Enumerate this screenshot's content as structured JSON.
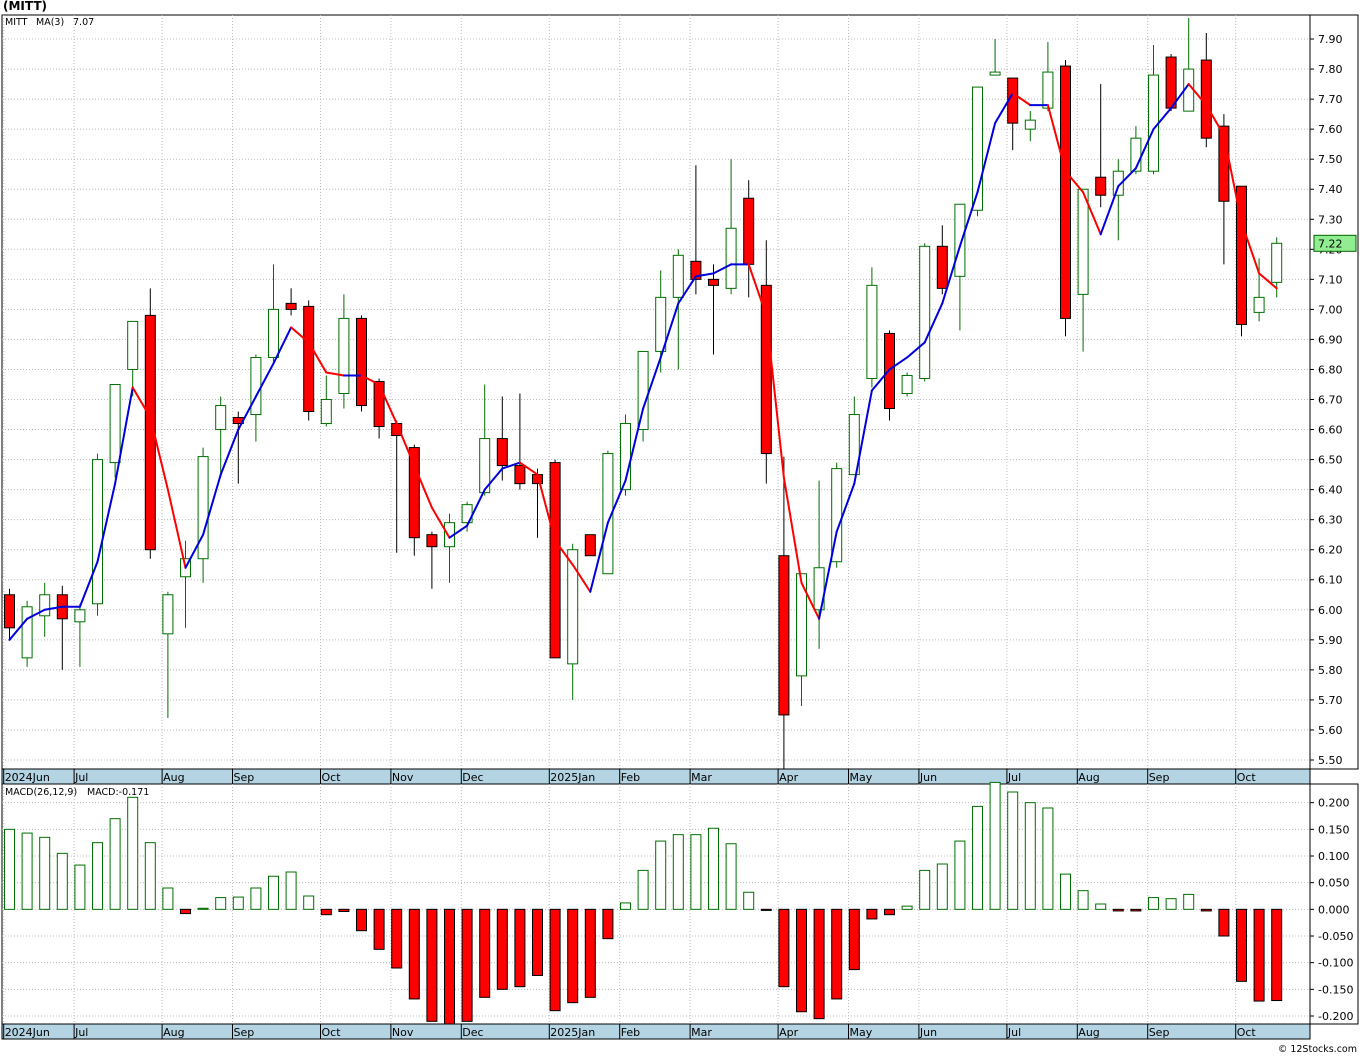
{
  "title": "(MITT)",
  "watermark": "© 12Stocks.com",
  "colors": {
    "up": "#007000",
    "down": "#ff0000",
    "ma_up": "#0000dd",
    "ma_down": "#ff0000",
    "axis_band": "#b4d4e4",
    "grid": "#bbbbbb",
    "last_price_box": "#90ee90"
  },
  "chart_data": [
    {
      "type": "candlestick",
      "legend": {
        "symbol": "MITT",
        "ma_label": "MA(3)",
        "ma_value": "7.07"
      },
      "last_price_label": "7.22",
      "y_ticks": [
        "5.50",
        "5.60",
        "5.70",
        "5.80",
        "5.90",
        "6.00",
        "6.10",
        "6.20",
        "6.30",
        "6.40",
        "6.50",
        "6.60",
        "6.70",
        "6.80",
        "6.90",
        "7.00",
        "7.10",
        "7.20",
        "7.30",
        "7.40",
        "7.50",
        "7.60",
        "7.70",
        "7.80",
        "7.90"
      ],
      "ylim": [
        5.47,
        7.98
      ],
      "grid": true,
      "x_labels": [
        {
          "label": "2024Jun",
          "bar": 0
        },
        {
          "label": "Jul",
          "bar": 4
        },
        {
          "label": "Aug",
          "bar": 9
        },
        {
          "label": "Sep",
          "bar": 13
        },
        {
          "label": "Oct",
          "bar": 18
        },
        {
          "label": "Nov",
          "bar": 22
        },
        {
          "label": "Dec",
          "bar": 26
        },
        {
          "label": "2025Jan",
          "bar": 31
        },
        {
          "label": "Feb",
          "bar": 35
        },
        {
          "label": "Mar",
          "bar": 39
        },
        {
          "label": "Apr",
          "bar": 44
        },
        {
          "label": "May",
          "bar": 48
        },
        {
          "label": "Jun",
          "bar": 52
        },
        {
          "label": "Jul",
          "bar": 57
        },
        {
          "label": "Aug",
          "bar": 61
        },
        {
          "label": "Sep",
          "bar": 65
        },
        {
          "label": "Oct",
          "bar": 70
        }
      ],
      "candles": [
        {
          "o": 6.05,
          "h": 6.07,
          "l": 5.9,
          "c": 5.94
        },
        {
          "o": 5.84,
          "h": 6.03,
          "l": 5.81,
          "c": 6.01
        },
        {
          "o": 5.98,
          "h": 6.09,
          "l": 5.91,
          "c": 6.05
        },
        {
          "o": 6.05,
          "h": 6.08,
          "l": 5.8,
          "c": 5.97
        },
        {
          "o": 5.96,
          "h": 6.02,
          "l": 5.81,
          "c": 6.0
        },
        {
          "o": 6.02,
          "h": 6.52,
          "l": 5.98,
          "c": 6.5
        },
        {
          "o": 6.49,
          "h": 6.75,
          "l": 6.44,
          "c": 6.75
        },
        {
          "o": 6.8,
          "h": 6.96,
          "l": 6.71,
          "c": 6.96
        },
        {
          "o": 6.98,
          "h": 7.07,
          "l": 6.17,
          "c": 6.2
        },
        {
          "o": 5.92,
          "h": 6.06,
          "l": 5.64,
          "c": 6.05
        },
        {
          "o": 6.11,
          "h": 6.23,
          "l": 5.94,
          "c": 6.17
        },
        {
          "o": 6.17,
          "h": 6.54,
          "l": 6.09,
          "c": 6.51
        },
        {
          "o": 6.6,
          "h": 6.71,
          "l": 6.44,
          "c": 6.68
        },
        {
          "o": 6.64,
          "h": 6.66,
          "l": 6.42,
          "c": 6.62
        },
        {
          "o": 6.65,
          "h": 6.85,
          "l": 6.56,
          "c": 6.84
        },
        {
          "o": 6.84,
          "h": 7.15,
          "l": 6.82,
          "c": 7.0
        },
        {
          "o": 7.02,
          "h": 7.07,
          "l": 6.98,
          "c": 7.0
        },
        {
          "o": 7.01,
          "h": 7.03,
          "l": 6.63,
          "c": 6.66
        },
        {
          "o": 6.62,
          "h": 6.78,
          "l": 6.61,
          "c": 6.7
        },
        {
          "o": 6.72,
          "h": 7.05,
          "l": 6.67,
          "c": 6.97
        },
        {
          "o": 6.97,
          "h": 6.98,
          "l": 6.66,
          "c": 6.68
        },
        {
          "o": 6.76,
          "h": 6.77,
          "l": 6.57,
          "c": 6.61
        },
        {
          "o": 6.62,
          "h": 6.63,
          "l": 6.19,
          "c": 6.58
        },
        {
          "o": 6.54,
          "h": 6.55,
          "l": 6.18,
          "c": 6.24
        },
        {
          "o": 6.25,
          "h": 6.26,
          "l": 6.07,
          "c": 6.21
        },
        {
          "o": 6.21,
          "h": 6.32,
          "l": 6.09,
          "c": 6.29
        },
        {
          "o": 6.29,
          "h": 6.36,
          "l": 6.26,
          "c": 6.35
        },
        {
          "o": 6.39,
          "h": 6.75,
          "l": 6.38,
          "c": 6.57
        },
        {
          "o": 6.57,
          "h": 6.71,
          "l": 6.43,
          "c": 6.48
        },
        {
          "o": 6.48,
          "h": 6.72,
          "l": 6.4,
          "c": 6.42
        },
        {
          "o": 6.45,
          "h": 6.47,
          "l": 6.24,
          "c": 6.42
        },
        {
          "o": 6.49,
          "h": 6.5,
          "l": 5.84,
          "c": 5.84
        },
        {
          "o": 5.82,
          "h": 6.22,
          "l": 5.7,
          "c": 6.2
        },
        {
          "o": 6.25,
          "h": 6.25,
          "l": 6.18,
          "c": 6.18
        },
        {
          "o": 6.12,
          "h": 6.53,
          "l": 6.12,
          "c": 6.52
        },
        {
          "o": 6.4,
          "h": 6.65,
          "l": 6.38,
          "c": 6.62
        },
        {
          "o": 6.6,
          "h": 6.86,
          "l": 6.56,
          "c": 6.86
        },
        {
          "o": 6.86,
          "h": 7.13,
          "l": 6.79,
          "c": 7.04
        },
        {
          "o": 7.04,
          "h": 7.2,
          "l": 6.8,
          "c": 7.18
        },
        {
          "o": 7.16,
          "h": 7.48,
          "l": 7.05,
          "c": 7.1
        },
        {
          "o": 7.1,
          "h": 7.15,
          "l": 6.85,
          "c": 7.08
        },
        {
          "o": 7.07,
          "h": 7.5,
          "l": 7.05,
          "c": 7.27
        },
        {
          "o": 7.37,
          "h": 7.43,
          "l": 7.04,
          "c": 7.15
        },
        {
          "o": 7.08,
          "h": 7.23,
          "l": 6.42,
          "c": 6.52
        },
        {
          "o": 6.18,
          "h": 6.51,
          "l": 5.47,
          "c": 5.65
        },
        {
          "o": 5.78,
          "h": 6.12,
          "l": 5.68,
          "c": 6.12
        },
        {
          "o": 6.0,
          "h": 6.43,
          "l": 5.87,
          "c": 6.14
        },
        {
          "o": 6.16,
          "h": 6.49,
          "l": 6.14,
          "c": 6.47
        },
        {
          "o": 6.45,
          "h": 6.71,
          "l": 6.45,
          "c": 6.65
        },
        {
          "o": 6.77,
          "h": 7.14,
          "l": 6.74,
          "c": 7.08
        },
        {
          "o": 6.92,
          "h": 6.93,
          "l": 6.63,
          "c": 6.67
        },
        {
          "o": 6.72,
          "h": 6.79,
          "l": 6.71,
          "c": 6.78
        },
        {
          "o": 6.77,
          "h": 7.22,
          "l": 6.76,
          "c": 7.21
        },
        {
          "o": 7.21,
          "h": 7.28,
          "l": 7.05,
          "c": 7.07
        },
        {
          "o": 7.11,
          "h": 7.35,
          "l": 6.93,
          "c": 7.35
        },
        {
          "o": 7.33,
          "h": 7.74,
          "l": 7.31,
          "c": 7.74
        },
        {
          "o": 7.78,
          "h": 7.9,
          "l": 7.78,
          "c": 7.79
        },
        {
          "o": 7.77,
          "h": 7.77,
          "l": 7.53,
          "c": 7.62
        },
        {
          "o": 7.6,
          "h": 7.66,
          "l": 7.56,
          "c": 7.63
        },
        {
          "o": 7.67,
          "h": 7.89,
          "l": 7.66,
          "c": 7.79
        },
        {
          "o": 7.81,
          "h": 7.83,
          "l": 6.91,
          "c": 6.97
        },
        {
          "o": 7.05,
          "h": 7.4,
          "l": 6.86,
          "c": 7.4
        },
        {
          "o": 7.44,
          "h": 7.75,
          "l": 7.34,
          "c": 7.38
        },
        {
          "o": 7.38,
          "h": 7.5,
          "l": 7.23,
          "c": 7.46
        },
        {
          "o": 7.46,
          "h": 7.61,
          "l": 7.45,
          "c": 7.57
        },
        {
          "o": 7.46,
          "h": 7.88,
          "l": 7.45,
          "c": 7.78
        },
        {
          "o": 7.84,
          "h": 7.85,
          "l": 7.66,
          "c": 7.67
        },
        {
          "o": 7.66,
          "h": 7.97,
          "l": 7.66,
          "c": 7.8
        },
        {
          "o": 7.83,
          "h": 7.92,
          "l": 7.54,
          "c": 7.57
        },
        {
          "o": 7.61,
          "h": 7.65,
          "l": 7.15,
          "c": 7.36
        },
        {
          "o": 7.41,
          "h": 7.41,
          "l": 6.91,
          "c": 6.95
        },
        {
          "o": 6.99,
          "h": 7.17,
          "l": 6.96,
          "c": 7.04
        },
        {
          "o": 7.09,
          "h": 7.24,
          "l": 7.04,
          "c": 7.22
        }
      ],
      "ma": [
        {
          "i": 0,
          "v": 5.9
        },
        {
          "i": 1,
          "v": 5.97
        },
        {
          "i": 2,
          "v": 6.0
        },
        {
          "i": 3,
          "v": 6.01
        },
        {
          "i": 4,
          "v": 6.01
        },
        {
          "i": 5,
          "v": 6.16
        },
        {
          "i": 6,
          "v": 6.42
        },
        {
          "i": 7,
          "v": 6.74
        },
        {
          "i": 8,
          "v": 6.64
        },
        {
          "i": 9,
          "v": 6.4
        },
        {
          "i": 10,
          "v": 6.14
        },
        {
          "i": 11,
          "v": 6.25
        },
        {
          "i": 12,
          "v": 6.45
        },
        {
          "i": 13,
          "v": 6.6
        },
        {
          "i": 14,
          "v": 6.71
        },
        {
          "i": 15,
          "v": 6.82
        },
        {
          "i": 16,
          "v": 6.94
        },
        {
          "i": 17,
          "v": 6.89
        },
        {
          "i": 18,
          "v": 6.79
        },
        {
          "i": 19,
          "v": 6.78
        },
        {
          "i": 20,
          "v": 6.78
        },
        {
          "i": 21,
          "v": 6.75
        },
        {
          "i": 22,
          "v": 6.62
        },
        {
          "i": 23,
          "v": 6.48
        },
        {
          "i": 24,
          "v": 6.34
        },
        {
          "i": 25,
          "v": 6.24
        },
        {
          "i": 26,
          "v": 6.28
        },
        {
          "i": 27,
          "v": 6.4
        },
        {
          "i": 28,
          "v": 6.47
        },
        {
          "i": 29,
          "v": 6.49
        },
        {
          "i": 30,
          "v": 6.45
        },
        {
          "i": 31,
          "v": 6.23
        },
        {
          "i": 32,
          "v": 6.15
        },
        {
          "i": 33,
          "v": 6.06
        },
        {
          "i": 34,
          "v": 6.29
        },
        {
          "i": 35,
          "v": 6.43
        },
        {
          "i": 36,
          "v": 6.67
        },
        {
          "i": 37,
          "v": 6.84
        },
        {
          "i": 38,
          "v": 7.02
        },
        {
          "i": 39,
          "v": 7.11
        },
        {
          "i": 40,
          "v": 7.12
        },
        {
          "i": 41,
          "v": 7.15
        },
        {
          "i": 42,
          "v": 7.15
        },
        {
          "i": 43,
          "v": 6.98
        },
        {
          "i": 44,
          "v": 6.44
        },
        {
          "i": 45,
          "v": 6.09
        },
        {
          "i": 46,
          "v": 5.97
        },
        {
          "i": 47,
          "v": 6.26
        },
        {
          "i": 48,
          "v": 6.42
        },
        {
          "i": 49,
          "v": 6.73
        },
        {
          "i": 50,
          "v": 6.8
        },
        {
          "i": 51,
          "v": 6.84
        },
        {
          "i": 52,
          "v": 6.89
        },
        {
          "i": 53,
          "v": 7.02
        },
        {
          "i": 54,
          "v": 7.21
        },
        {
          "i": 55,
          "v": 7.39
        },
        {
          "i": 56,
          "v": 7.62
        },
        {
          "i": 57,
          "v": 7.72
        },
        {
          "i": 58,
          "v": 7.68
        },
        {
          "i": 59,
          "v": 7.68
        },
        {
          "i": 60,
          "v": 7.46
        },
        {
          "i": 61,
          "v": 7.39
        },
        {
          "i": 62,
          "v": 7.25
        },
        {
          "i": 63,
          "v": 7.41
        },
        {
          "i": 64,
          "v": 7.47
        },
        {
          "i": 65,
          "v": 7.6
        },
        {
          "i": 66,
          "v": 7.67
        },
        {
          "i": 67,
          "v": 7.75
        },
        {
          "i": 68,
          "v": 7.68
        },
        {
          "i": 69,
          "v": 7.58
        },
        {
          "i": 70,
          "v": 7.29
        },
        {
          "i": 71,
          "v": 7.12
        },
        {
          "i": 72,
          "v": 7.07
        }
      ]
    },
    {
      "type": "bar",
      "legend": {
        "label": "MACD(26,12,9)",
        "value_label": "MACD:-0.171"
      },
      "y_ticks": [
        "-0.200",
        "-0.150",
        "-0.100",
        "-0.050",
        "0.000",
        "0.050",
        "0.100",
        "0.150",
        "0.200"
      ],
      "ylim": [
        -0.215,
        0.235
      ],
      "grid": true,
      "values": [
        0.15,
        0.143,
        0.135,
        0.105,
        0.083,
        0.125,
        0.17,
        0.21,
        0.125,
        0.04,
        -0.008,
        0.002,
        0.022,
        0.023,
        0.04,
        0.062,
        0.07,
        0.025,
        -0.01,
        -0.004,
        -0.04,
        -0.075,
        -0.11,
        -0.168,
        -0.21,
        -0.215,
        -0.21,
        -0.165,
        -0.15,
        -0.145,
        -0.124,
        -0.19,
        -0.175,
        -0.165,
        -0.055,
        0.012,
        0.073,
        0.128,
        0.14,
        0.14,
        0.152,
        0.123,
        0.032,
        -0.002,
        -0.145,
        -0.192,
        -0.205,
        -0.168,
        -0.113,
        -0.018,
        -0.01,
        0.006,
        0.073,
        0.085,
        0.128,
        0.193,
        0.238,
        0.22,
        0.2,
        0.19,
        0.066,
        0.035,
        0.01,
        -0.003,
        -0.003,
        0.022,
        0.02,
        0.028,
        -0.003,
        -0.05,
        -0.135,
        -0.172,
        -0.171
      ]
    }
  ]
}
